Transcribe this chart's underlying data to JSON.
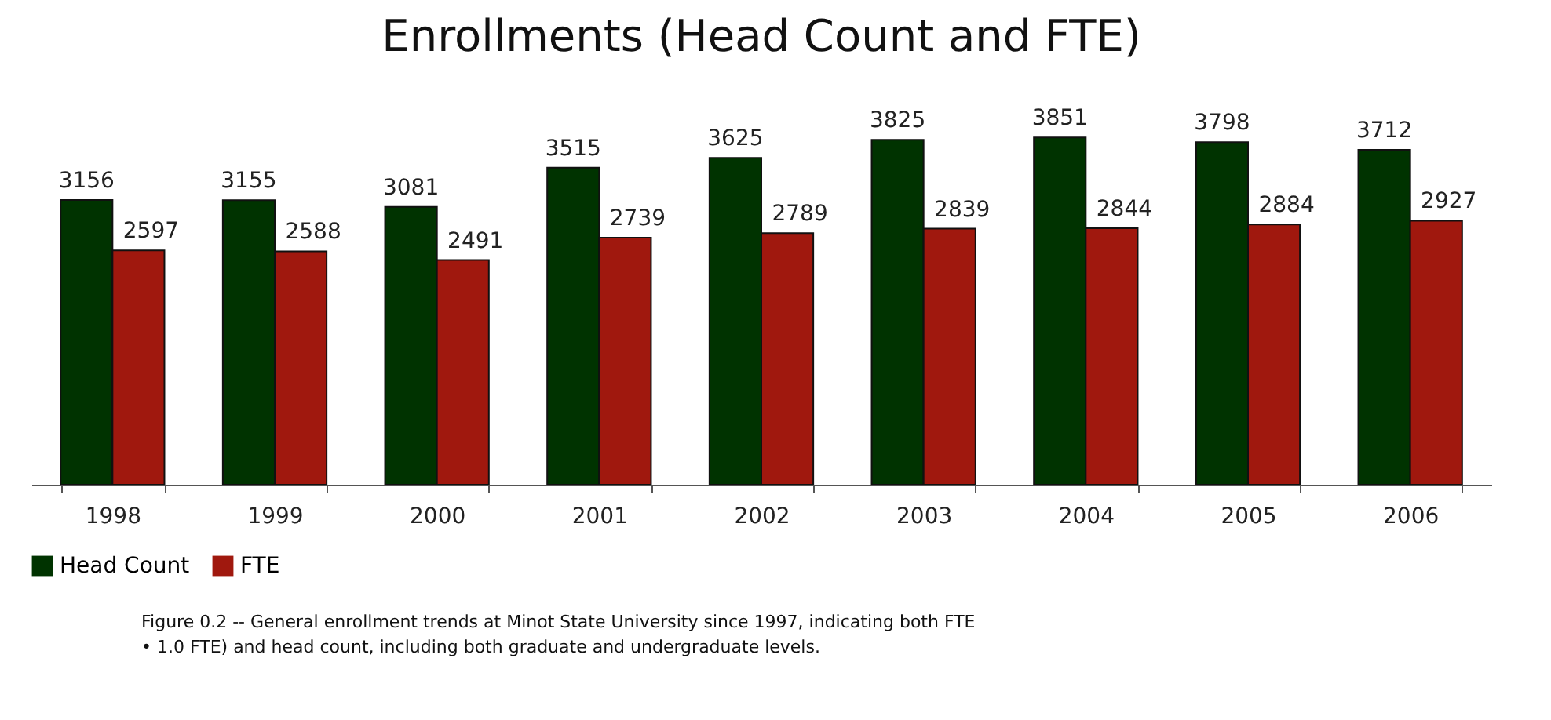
{
  "chart_data": {
    "type": "bar",
    "title": "Enrollments (Head Count and FTE)",
    "categories": [
      "1998",
      "1999",
      "2000",
      "2001",
      "2002",
      "2003",
      "2004",
      "2005",
      "2006"
    ],
    "series": [
      {
        "name": "Head Count",
        "color": "#003300",
        "values": [
          3156,
          3155,
          3081,
          3515,
          3625,
          3825,
          3851,
          3798,
          3712
        ]
      },
      {
        "name": "FTE",
        "color": "#a0180e",
        "values": [
          2597,
          2588,
          2491,
          2739,
          2789,
          2839,
          2844,
          2884,
          2927
        ]
      }
    ],
    "data_labels": true,
    "legend": "bottom",
    "grid": false,
    "tick_labels": "x",
    "annotations": [
      "Figure 0.2 -- General enrollment trends at Minot State University since 1997, indicating both FTE",
      "• 1.0 FTE) and head count, including both graduate and undergraduate levels."
    ]
  }
}
